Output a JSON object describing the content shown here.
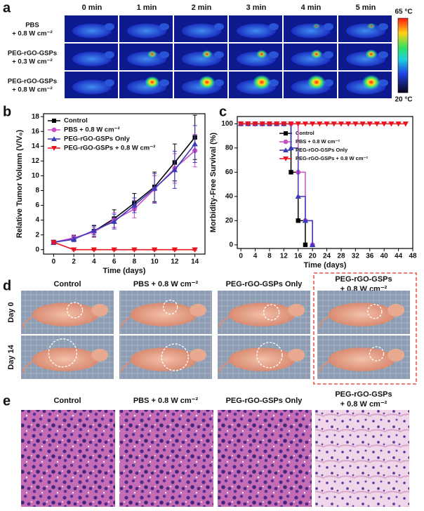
{
  "panel_a": {
    "label": "a",
    "columns": [
      "0 min",
      "1 min",
      "2 min",
      "3 min",
      "4 min",
      "5 min"
    ],
    "rows": [
      [
        "PBS",
        "+ 0.8 W cm⁻²"
      ],
      [
        "PEG-rGO-GSPs",
        "+ 0.3 W cm⁻²"
      ],
      [
        "PEG-rGO-GSPs",
        "+ 0.8 W cm⁻²"
      ]
    ],
    "colorbar": [
      "65 °C",
      "20 °C"
    ]
  },
  "chart_data": [
    {
      "type": "line",
      "label": "b",
      "x_label": "Time (days)",
      "y_label": "Relative Tumor Volumn (V/V₀)",
      "x": [
        0,
        2,
        4,
        6,
        8,
        10,
        12,
        14
      ],
      "xlim": [
        -1,
        15
      ],
      "xticks": [
        0,
        2,
        4,
        6,
        8,
        10,
        12,
        14
      ],
      "ylim": [
        -0.6,
        18.4
      ],
      "yticks": [
        0,
        2,
        4,
        6,
        8,
        10,
        12,
        14,
        16,
        18
      ],
      "series": [
        {
          "name": "Control",
          "color": "#000000",
          "marker": "square",
          "values": [
            1,
            1.5,
            2.5,
            4.2,
            6.3,
            8.5,
            11.8,
            15.2
          ],
          "errors": [
            0.3,
            0.4,
            0.8,
            1.2,
            1.3,
            2.0,
            2.5,
            3.0
          ]
        },
        {
          "name": "PBS + 0.8 W cm⁻²",
          "color": "#c84fc8",
          "marker": "circle",
          "values": [
            1,
            1.6,
            2.4,
            4.0,
            5.5,
            8.2,
            11.0,
            13.4
          ],
          "errors": [
            0.3,
            0.4,
            0.6,
            1.0,
            1.2,
            1.8,
            2.0,
            2.2
          ]
        },
        {
          "name": "PEG-rGO-GSPs Only",
          "color": "#3a3ab8",
          "marker": "triangle-up",
          "values": [
            1,
            1.4,
            2.6,
            3.8,
            6.0,
            8.3,
            10.8,
            14.3
          ],
          "errors": [
            0.3,
            0.3,
            0.6,
            1.0,
            1.0,
            2.0,
            2.5,
            2.5
          ]
        },
        {
          "name": "PEG-rGO-GSPs + 0.8 W cm⁻²",
          "color": "#e8141e",
          "marker": "triangle-down",
          "values": [
            1,
            0,
            0,
            0,
            0,
            0,
            0,
            0
          ],
          "errors": [
            0.2,
            0.1,
            0.1,
            0.1,
            0.1,
            0.1,
            0.1,
            0.1
          ]
        }
      ]
    },
    {
      "type": "step",
      "label": "c",
      "x_label": "Time (days)",
      "y_label": "Morbidity-Free Survival (%)",
      "x": [
        0,
        2,
        4,
        6,
        8,
        10,
        12,
        14,
        16,
        18,
        20,
        22,
        24,
        26,
        28,
        30,
        32,
        34,
        36,
        38,
        40,
        42,
        44,
        46
      ],
      "xlim": [
        -1,
        48
      ],
      "xticks": [
        0,
        4,
        8,
        12,
        16,
        20,
        24,
        28,
        32,
        36,
        40,
        44,
        48
      ],
      "ylim": [
        -3,
        106
      ],
      "yticks": [
        0,
        20,
        40,
        60,
        80,
        100
      ],
      "series": [
        {
          "name": "Control",
          "color": "#000000",
          "marker": "square",
          "values": [
            100,
            100,
            100,
            100,
            100,
            100,
            100,
            60,
            20,
            0,
            null,
            null,
            null,
            null,
            null,
            null,
            null,
            null,
            null,
            null,
            null,
            null,
            null,
            null
          ]
        },
        {
          "name": "PBS + 0.8 W cm⁻²",
          "color": "#c84fc8",
          "marker": "circle",
          "values": [
            100,
            100,
            100,
            100,
            100,
            100,
            100,
            100,
            60,
            20,
            0,
            null,
            null,
            null,
            null,
            null,
            null,
            null,
            null,
            null,
            null,
            null,
            null,
            null
          ]
        },
        {
          "name": "PEG-rGO-GSPs Only",
          "color": "#3a3ab8",
          "marker": "triangle-up",
          "values": [
            100,
            100,
            100,
            100,
            100,
            100,
            100,
            80,
            40,
            20,
            0,
            null,
            null,
            null,
            null,
            null,
            null,
            null,
            null,
            null,
            null,
            null,
            null,
            null
          ]
        },
        {
          "name": "PEG-rGO-GSPs + 0.8 W cm⁻²",
          "color": "#e8141e",
          "marker": "triangle-down",
          "values": [
            100,
            100,
            100,
            100,
            100,
            100,
            100,
            100,
            100,
            100,
            100,
            100,
            100,
            100,
            100,
            100,
            100,
            100,
            100,
            100,
            100,
            100,
            100,
            100
          ]
        }
      ]
    }
  ],
  "panel_d": {
    "label": "d",
    "columns": [
      [
        "Control"
      ],
      [
        "PBS + 0.8 W cm⁻²"
      ],
      [
        "PEG-rGO-GSPs Only"
      ],
      [
        "PEG-rGO-GSPs",
        "+ 0.8 W cm⁻²"
      ]
    ],
    "rows": [
      "Day 0",
      "Day 14"
    ]
  },
  "panel_e": {
    "label": "e",
    "columns": [
      [
        "Control"
      ],
      [
        "PBS + 0.8 W cm⁻²"
      ],
      [
        "PEG-rGO-GSPs Only"
      ],
      [
        "PEG-rGO-GSPs",
        "+ 0.8 W cm⁻²"
      ]
    ]
  }
}
